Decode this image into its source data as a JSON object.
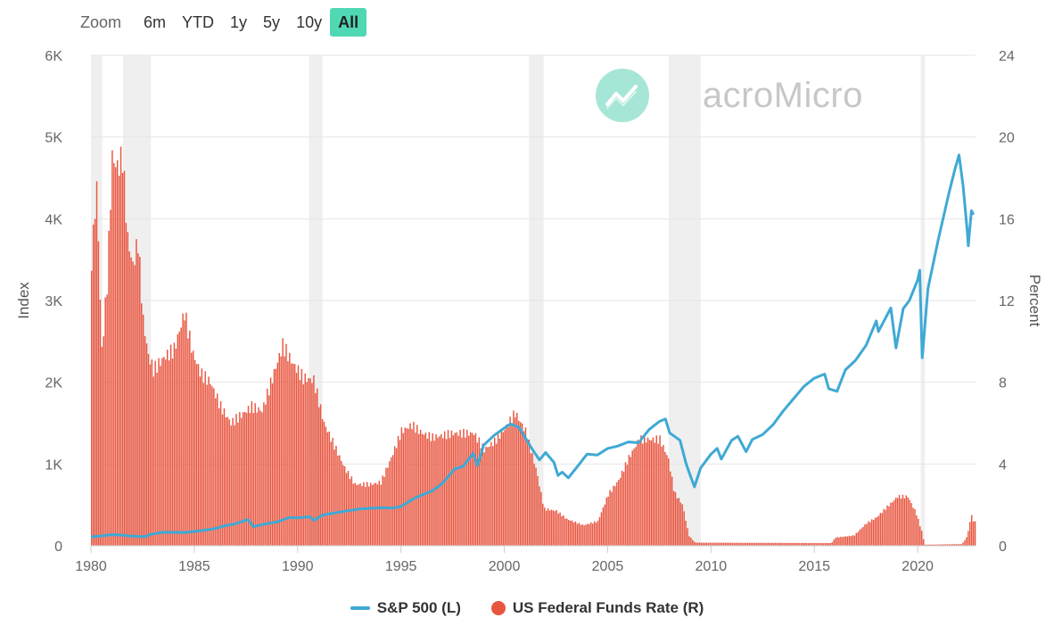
{
  "zoom": {
    "label": "Zoom",
    "buttons": [
      "6m",
      "YTD",
      "1y",
      "5y",
      "10y",
      "All"
    ],
    "active": "All"
  },
  "watermark": {
    "text": "MacroMicro"
  },
  "legend": {
    "sp500": "S&P 500 (L)",
    "fedfunds": "US Federal Funds Rate (R)"
  },
  "colors": {
    "sp500": "#3fa9d4",
    "fedfunds": "#e8553f",
    "recession": "#efefef",
    "accent": "#4fd8b4"
  },
  "chart_data": {
    "type": "line",
    "y_left": {
      "title": "Index",
      "ticks": [
        "0",
        "1K",
        "2K",
        "3K",
        "4K",
        "5K",
        "6K"
      ],
      "range": [
        0,
        6000
      ]
    },
    "y_right": {
      "title": "Percent",
      "ticks": [
        "0",
        "4",
        "8",
        "12",
        "16",
        "20",
        "24"
      ],
      "range": [
        0,
        24
      ]
    },
    "x": {
      "ticks": [
        "1980",
        "1985",
        "1990",
        "1995",
        "2000",
        "2005",
        "2010",
        "2015",
        "2020"
      ],
      "range": [
        1980,
        2022.8
      ]
    },
    "recessions": [
      [
        1980.0,
        1980.55
      ],
      [
        1981.55,
        1982.9
      ],
      [
        1990.55,
        1991.2
      ],
      [
        2001.2,
        2001.9
      ],
      [
        2007.95,
        2009.5
      ],
      [
        2020.15,
        2020.35
      ]
    ],
    "series": [
      {
        "name": "S&P 500 (L)",
        "type": "line",
        "axis": "left",
        "points": [
          [
            1980.0,
            108
          ],
          [
            1980.5,
            120
          ],
          [
            1981.0,
            135
          ],
          [
            1981.5,
            130
          ],
          [
            1982.0,
            118
          ],
          [
            1982.6,
            110
          ],
          [
            1982.9,
            140
          ],
          [
            1983.5,
            165
          ],
          [
            1984.0,
            164
          ],
          [
            1984.6,
            162
          ],
          [
            1985.0,
            175
          ],
          [
            1985.5,
            190
          ],
          [
            1986.0,
            210
          ],
          [
            1986.5,
            245
          ],
          [
            1987.0,
            270
          ],
          [
            1987.6,
            320
          ],
          [
            1987.85,
            235
          ],
          [
            1988.5,
            270
          ],
          [
            1989.0,
            290
          ],
          [
            1989.6,
            345
          ],
          [
            1990.0,
            340
          ],
          [
            1990.6,
            355
          ],
          [
            1990.8,
            310
          ],
          [
            1991.2,
            375
          ],
          [
            1992.0,
            410
          ],
          [
            1993.0,
            450
          ],
          [
            1994.0,
            465
          ],
          [
            1994.6,
            460
          ],
          [
            1995.0,
            480
          ],
          [
            1995.5,
            560
          ],
          [
            1996.0,
            620
          ],
          [
            1996.5,
            670
          ],
          [
            1997.0,
            760
          ],
          [
            1997.6,
            940
          ],
          [
            1998.0,
            970
          ],
          [
            1998.5,
            1130
          ],
          [
            1998.7,
            980
          ],
          [
            1999.0,
            1230
          ],
          [
            1999.5,
            1350
          ],
          [
            2000.0,
            1440
          ],
          [
            2000.3,
            1490
          ],
          [
            2000.7,
            1450
          ],
          [
            2001.0,
            1330
          ],
          [
            2001.3,
            1200
          ],
          [
            2001.7,
            1050
          ],
          [
            2002.0,
            1140
          ],
          [
            2002.4,
            1020
          ],
          [
            2002.6,
            860
          ],
          [
            2002.8,
            900
          ],
          [
            2003.1,
            830
          ],
          [
            2003.6,
            990
          ],
          [
            2004.0,
            1120
          ],
          [
            2004.5,
            1110
          ],
          [
            2005.0,
            1190
          ],
          [
            2005.5,
            1220
          ],
          [
            2006.0,
            1270
          ],
          [
            2006.5,
            1260
          ],
          [
            2007.0,
            1420
          ],
          [
            2007.5,
            1520
          ],
          [
            2007.8,
            1550
          ],
          [
            2008.0,
            1380
          ],
          [
            2008.5,
            1290
          ],
          [
            2008.8,
            1000
          ],
          [
            2009.0,
            860
          ],
          [
            2009.2,
            720
          ],
          [
            2009.5,
            950
          ],
          [
            2010.0,
            1120
          ],
          [
            2010.3,
            1190
          ],
          [
            2010.5,
            1060
          ],
          [
            2011.0,
            1290
          ],
          [
            2011.3,
            1340
          ],
          [
            2011.7,
            1150
          ],
          [
            2012.0,
            1300
          ],
          [
            2012.5,
            1360
          ],
          [
            2013.0,
            1480
          ],
          [
            2013.5,
            1650
          ],
          [
            2014.0,
            1800
          ],
          [
            2014.5,
            1950
          ],
          [
            2015.0,
            2050
          ],
          [
            2015.5,
            2100
          ],
          [
            2015.7,
            1920
          ],
          [
            2016.1,
            1890
          ],
          [
            2016.5,
            2150
          ],
          [
            2017.0,
            2270
          ],
          [
            2017.5,
            2450
          ],
          [
            2018.0,
            2750
          ],
          [
            2018.1,
            2620
          ],
          [
            2018.7,
            2910
          ],
          [
            2018.95,
            2420
          ],
          [
            2019.3,
            2900
          ],
          [
            2019.6,
            3000
          ],
          [
            2020.0,
            3250
          ],
          [
            2020.1,
            3370
          ],
          [
            2020.22,
            2300
          ],
          [
            2020.5,
            3150
          ],
          [
            2021.0,
            3750
          ],
          [
            2021.5,
            4300
          ],
          [
            2021.8,
            4600
          ],
          [
            2022.0,
            4780
          ],
          [
            2022.2,
            4400
          ],
          [
            2022.4,
            3850
          ],
          [
            2022.45,
            3670
          ],
          [
            2022.6,
            4100
          ],
          [
            2022.7,
            4050
          ]
        ]
      },
      {
        "name": "US Federal Funds Rate (R)",
        "type": "bar",
        "axis": "right",
        "points": [
          [
            1980.0,
            14.0
          ],
          [
            1980.25,
            17.6
          ],
          [
            1980.5,
            9.5
          ],
          [
            1980.75,
            12.8
          ],
          [
            1981.0,
            19.0
          ],
          [
            1981.25,
            18.5
          ],
          [
            1981.5,
            19.0
          ],
          [
            1981.75,
            15.0
          ],
          [
            1982.0,
            13.7
          ],
          [
            1982.25,
            14.9
          ],
          [
            1982.5,
            11.0
          ],
          [
            1982.75,
            9.3
          ],
          [
            1983.0,
            8.6
          ],
          [
            1983.5,
            9.2
          ],
          [
            1984.0,
            9.6
          ],
          [
            1984.5,
            11.4
          ],
          [
            1984.9,
            9.4
          ],
          [
            1985.3,
            8.4
          ],
          [
            1985.75,
            8.0
          ],
          [
            1986.25,
            6.8
          ],
          [
            1986.75,
            6.0
          ],
          [
            1987.25,
            6.4
          ],
          [
            1987.75,
            6.8
          ],
          [
            1988.25,
            6.6
          ],
          [
            1988.75,
            8.2
          ],
          [
            1989.25,
            9.8
          ],
          [
            1989.75,
            8.9
          ],
          [
            1990.25,
            8.2
          ],
          [
            1990.75,
            8.1
          ],
          [
            1991.25,
            6.0
          ],
          [
            1991.75,
            4.9
          ],
          [
            1992.25,
            3.8
          ],
          [
            1992.75,
            3.0
          ],
          [
            1993.5,
            3.0
          ],
          [
            1994.0,
            3.1
          ],
          [
            1994.5,
            4.3
          ],
          [
            1995.0,
            5.6
          ],
          [
            1995.5,
            5.9
          ],
          [
            1996.0,
            5.5
          ],
          [
            1996.5,
            5.3
          ],
          [
            1997.5,
            5.5
          ],
          [
            1998.5,
            5.5
          ],
          [
            1999.0,
            4.7
          ],
          [
            1999.5,
            5.1
          ],
          [
            2000.0,
            5.7
          ],
          [
            2000.5,
            6.5
          ],
          [
            2001.0,
            5.6
          ],
          [
            2001.5,
            3.8
          ],
          [
            2001.9,
            1.8
          ],
          [
            2002.5,
            1.7
          ],
          [
            2003.0,
            1.3
          ],
          [
            2003.8,
            1.0
          ],
          [
            2004.5,
            1.2
          ],
          [
            2005.0,
            2.5
          ],
          [
            2005.5,
            3.2
          ],
          [
            2006.0,
            4.3
          ],
          [
            2006.5,
            5.2
          ],
          [
            2007.5,
            5.2
          ],
          [
            2007.9,
            4.3
          ],
          [
            2008.2,
            2.6
          ],
          [
            2008.6,
            2.0
          ],
          [
            2008.9,
            0.5
          ],
          [
            2009.2,
            0.15
          ],
          [
            2015.8,
            0.13
          ],
          [
            2016.0,
            0.4
          ],
          [
            2016.9,
            0.5
          ],
          [
            2017.5,
            1.1
          ],
          [
            2018.0,
            1.4
          ],
          [
            2018.5,
            1.9
          ],
          [
            2019.0,
            2.4
          ],
          [
            2019.5,
            2.4
          ],
          [
            2019.9,
            1.6
          ],
          [
            2020.2,
            0.6
          ],
          [
            2020.3,
            0.05
          ],
          [
            2022.1,
            0.08
          ],
          [
            2022.3,
            0.33
          ],
          [
            2022.45,
            0.8
          ],
          [
            2022.55,
            1.6
          ],
          [
            2022.65,
            1.2
          ]
        ]
      }
    ]
  }
}
